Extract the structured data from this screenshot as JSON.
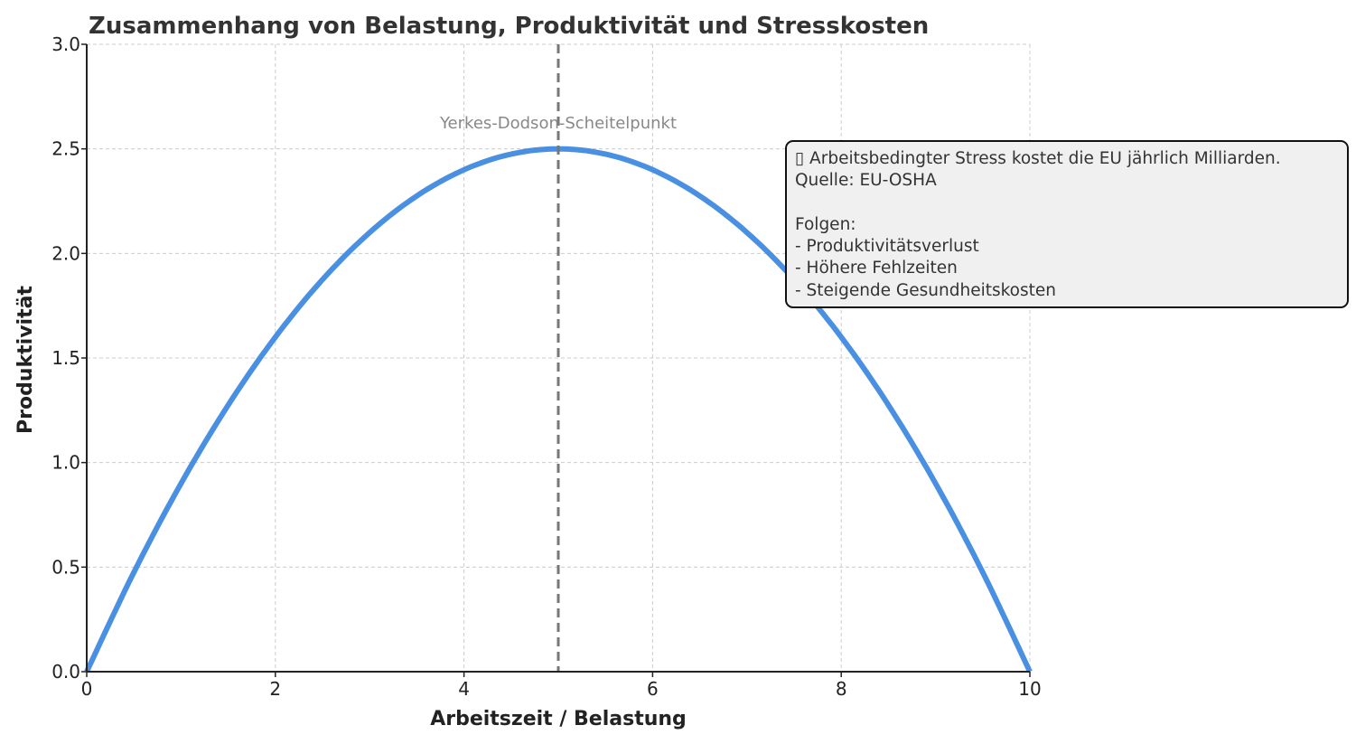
{
  "chart_data": {
    "type": "line",
    "title": "Zusammenhang von Belastung, Produktivität und Stresskosten",
    "xlabel": "Arbeitszeit / Belastung",
    "ylabel": "Produktivität",
    "xlim": [
      0,
      10
    ],
    "ylim": [
      0,
      3.0
    ],
    "grid": true,
    "x_ticks": [
      0,
      2,
      4,
      6,
      8,
      10
    ],
    "x_tick_labels": [
      "0",
      "2",
      "4",
      "6",
      "8",
      "10"
    ],
    "y_ticks": [
      0,
      0.5,
      1.0,
      1.5,
      2.0,
      2.5,
      3.0
    ],
    "y_tick_labels": [
      "0.0",
      "0.5",
      "1.0",
      "1.5",
      "2.0",
      "2.5",
      "3.0"
    ],
    "series": [
      {
        "name": "Produktivität",
        "color": "#4a90e2",
        "x": [
          0,
          0.5,
          1,
          1.5,
          2,
          2.5,
          3,
          3.5,
          4,
          4.5,
          5,
          5.5,
          6,
          6.5,
          7,
          7.5,
          8,
          8.5,
          9,
          9.5,
          10
        ],
        "values": [
          0,
          0.475,
          0.9,
          1.275,
          1.6,
          1.875,
          2.1,
          2.275,
          2.4,
          2.475,
          2.5,
          2.475,
          2.4,
          2.275,
          2.1,
          1.875,
          1.6,
          1.275,
          0.9,
          0.475,
          0
        ]
      }
    ],
    "vline": {
      "x": 5,
      "color": "#777777",
      "style": "dashed"
    },
    "annotations": [
      {
        "text": "Yerkes-Dodson-Scheitelpunkt",
        "x": 5,
        "y": 2.62,
        "color": "#888888"
      }
    ],
    "info_box": {
      "lines": [
        "▯ Arbeitsbedingter Stress kostet die EU jährlich Milliarden.",
        "Quelle: EU-OSHA",
        "",
        "Folgen:",
        "- Produktivitätsverlust",
        "- Höhere Fehlzeiten",
        "- Steigende Gesundheitskosten"
      ]
    }
  }
}
